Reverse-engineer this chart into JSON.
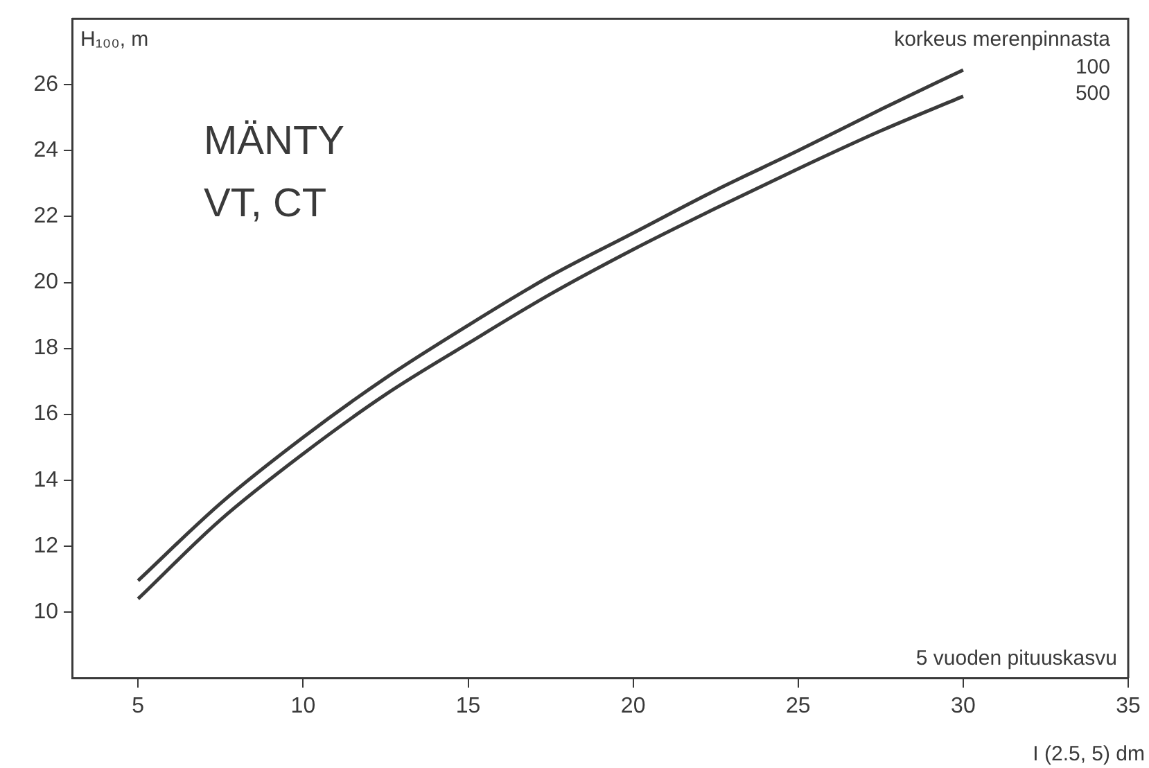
{
  "chart_data": {
    "type": "line",
    "title": "MÄNTY",
    "subtitle": "VT, CT",
    "ylabel": "H₁₀₀, m",
    "xlabel": "I (2.5, 5) dm",
    "legend_title": "korkeus merenpinnasta",
    "annotations": [
      "5 vuoden pituuskasvu"
    ],
    "x": [
      5,
      7.5,
      10,
      12.5,
      15,
      17.5,
      20,
      22.5,
      25,
      27.5,
      30
    ],
    "series": [
      {
        "name": "100",
        "color": "#3a3a3a",
        "values": [
          10.95,
          13.3,
          15.3,
          17.1,
          18.7,
          20.2,
          21.5,
          22.8,
          24.0,
          25.25,
          26.45
        ]
      },
      {
        "name": "500",
        "color": "#3a3a3a",
        "values": [
          10.4,
          12.8,
          14.8,
          16.6,
          18.15,
          19.65,
          21.0,
          22.25,
          23.45,
          24.6,
          25.65
        ]
      }
    ],
    "xlim": [
      3,
      35
    ],
    "xticks": [
      5,
      10,
      15,
      20,
      25,
      30,
      35
    ],
    "ylim": [
      8,
      28
    ],
    "yticks": [
      10,
      12,
      14,
      16,
      18,
      20,
      22,
      24,
      26
    ],
    "grid": false,
    "marker": "none",
    "line_style": "solid"
  }
}
